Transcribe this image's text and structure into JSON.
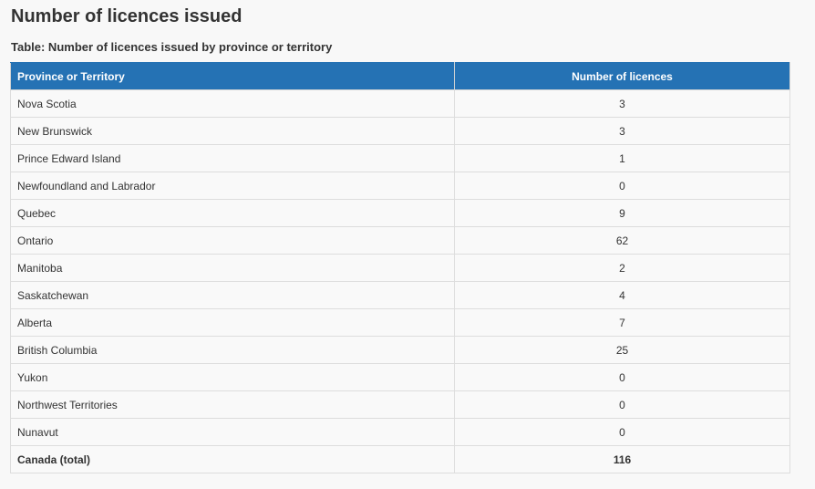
{
  "page": {
    "title": "Number of licences issued",
    "caption": "Table: Number of licences issued by province or territory"
  },
  "table": {
    "headers": [
      "Province or Territory",
      "Number of licences"
    ],
    "rows": [
      {
        "province": "Nova Scotia",
        "count": "3"
      },
      {
        "province": "New Brunswick",
        "count": "3"
      },
      {
        "province": "Prince Edward Island",
        "count": "1"
      },
      {
        "province": "Newfoundland and Labrador",
        "count": "0"
      },
      {
        "province": "Quebec",
        "count": "9"
      },
      {
        "province": "Ontario",
        "count": "62"
      },
      {
        "province": "Manitoba",
        "count": "2"
      },
      {
        "province": "Saskatchewan",
        "count": "4"
      },
      {
        "province": "Alberta",
        "count": "7"
      },
      {
        "province": "British Columbia",
        "count": "25"
      },
      {
        "province": "Yukon",
        "count": "0"
      },
      {
        "province": "Northwest Territories",
        "count": "0"
      },
      {
        "province": "Nunavut",
        "count": "0"
      }
    ],
    "total": {
      "province": "Canada (total)",
      "count": "116"
    }
  },
  "colors": {
    "header_bg": "#2572b4",
    "header_text": "#ffffff",
    "page_bg": "#f8f8f8"
  }
}
